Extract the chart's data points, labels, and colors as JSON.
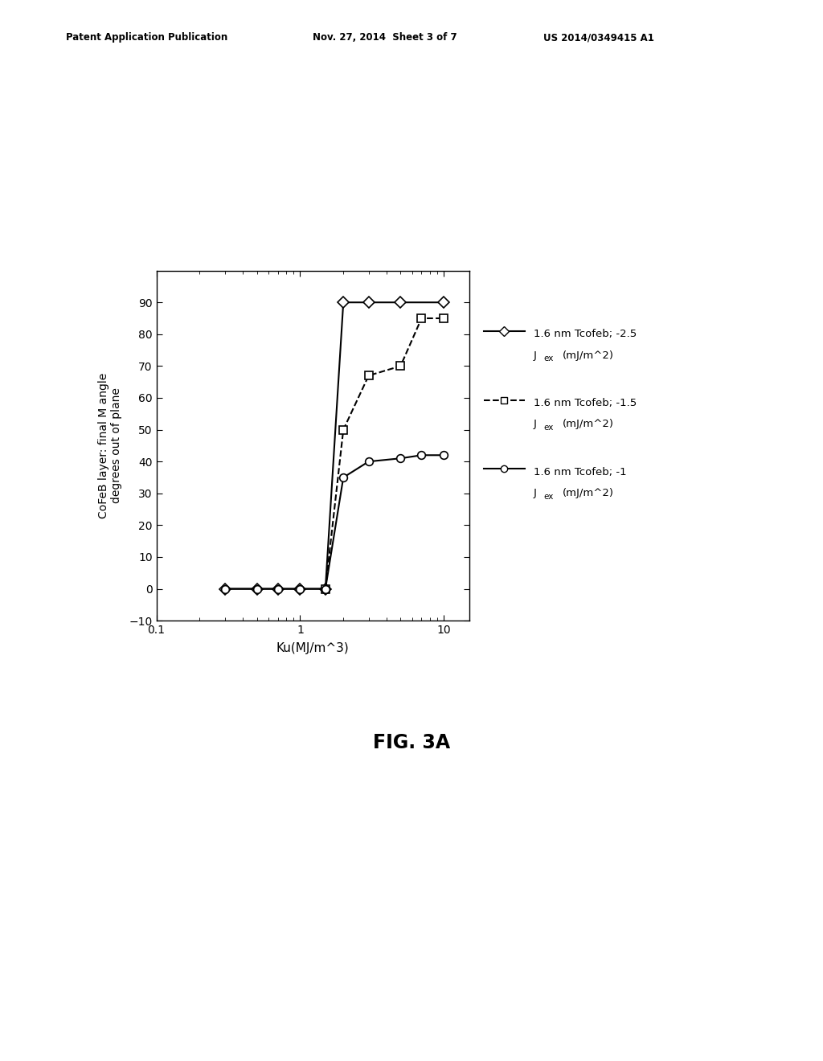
{
  "xlabel": "Ku(MJ/m^3)",
  "ylabel": "CoFeB layer: final M angle\ndegrees out of plane",
  "fig_caption": "FIG. 3A",
  "header_left": "Patent Application Publication",
  "header_mid": "Nov. 27, 2014  Sheet 3 of 7",
  "header_right": "US 2014/0349415 A1",
  "xlim": [
    0.1,
    15
  ],
  "ylim": [
    -10,
    100
  ],
  "yticks": [
    -10,
    0,
    10,
    20,
    30,
    40,
    50,
    60,
    70,
    80,
    90
  ],
  "series": [
    {
      "x": [
        0.3,
        0.5,
        0.7,
        1.0,
        1.5,
        2.0,
        3.0,
        5.0,
        10.0
      ],
      "y": [
        0,
        0,
        0,
        0,
        0,
        90,
        90,
        90,
        90
      ],
      "marker": "D",
      "linestyle": "-",
      "markersize": 7
    },
    {
      "x": [
        1.5,
        2.0,
        3.0,
        5.0,
        7.0,
        10.0
      ],
      "y": [
        0,
        50,
        67,
        70,
        85,
        85
      ],
      "marker": "s",
      "linestyle": "--",
      "markersize": 7
    },
    {
      "x": [
        0.3,
        0.5,
        0.7,
        1.0,
        1.5,
        2.0,
        3.0,
        5.0,
        7.0,
        10.0
      ],
      "y": [
        0,
        0,
        0,
        0,
        0,
        35,
        40,
        41,
        42,
        42
      ],
      "marker": "o",
      "linestyle": "-",
      "markersize": 7
    }
  ],
  "legend": [
    {
      "line1": "1.6 nm Tcofeb; -2.5",
      "line2": "Jₑₓ(mJ/m^2)"
    },
    {
      "line1": "1.6 nm Tcofeb; -1.5",
      "line2": "Jₑₓ(mJ/m^2)"
    },
    {
      "line1": "1.6 nm Tcofeb; -1",
      "line2": "Jₑₓ(mJ/m^2)"
    }
  ],
  "background_color": "#ffffff",
  "font_color": "#000000"
}
